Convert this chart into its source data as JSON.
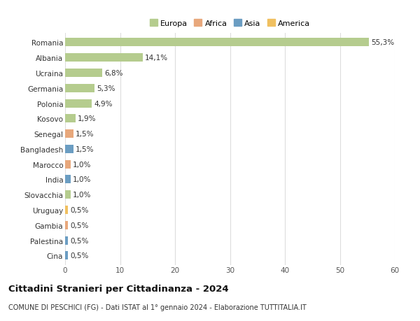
{
  "countries": [
    "Romania",
    "Albania",
    "Ucraina",
    "Germania",
    "Polonia",
    "Kosovo",
    "Senegal",
    "Bangladesh",
    "Marocco",
    "India",
    "Slovacchia",
    "Uruguay",
    "Gambia",
    "Palestina",
    "Cina"
  ],
  "values": [
    55.3,
    14.1,
    6.8,
    5.3,
    4.9,
    1.9,
    1.5,
    1.5,
    1.0,
    1.0,
    1.0,
    0.5,
    0.5,
    0.5,
    0.5
  ],
  "labels": [
    "55,3%",
    "14,1%",
    "6,8%",
    "5,3%",
    "4,9%",
    "1,9%",
    "1,5%",
    "1,5%",
    "1,0%",
    "1,0%",
    "1,0%",
    "0,5%",
    "0,5%",
    "0,5%",
    "0,5%"
  ],
  "continents": [
    "Europa",
    "Europa",
    "Europa",
    "Europa",
    "Europa",
    "Europa",
    "Africa",
    "Asia",
    "Africa",
    "Asia",
    "Europa",
    "America",
    "Africa",
    "Asia",
    "Asia"
  ],
  "continent_colors": {
    "Europa": "#b5cc8e",
    "Africa": "#e8a87c",
    "Asia": "#6b9dc2",
    "America": "#f0c060"
  },
  "legend_order": [
    "Europa",
    "Africa",
    "Asia",
    "America"
  ],
  "xlim": [
    0,
    60
  ],
  "xticks": [
    0,
    10,
    20,
    30,
    40,
    50,
    60
  ],
  "title": "Cittadini Stranieri per Cittadinanza - 2024",
  "subtitle": "COMUNE DI PESCHICI (FG) - Dati ISTAT al 1° gennaio 2024 - Elaborazione TUTTITALIA.IT",
  "background_color": "#ffffff",
  "grid_color": "#dddddd",
  "bar_height": 0.55,
  "label_fontsize": 7.5,
  "ytick_fontsize": 7.5,
  "xtick_fontsize": 7.5,
  "title_fontsize": 9.5,
  "subtitle_fontsize": 7.0,
  "legend_fontsize": 8.0
}
